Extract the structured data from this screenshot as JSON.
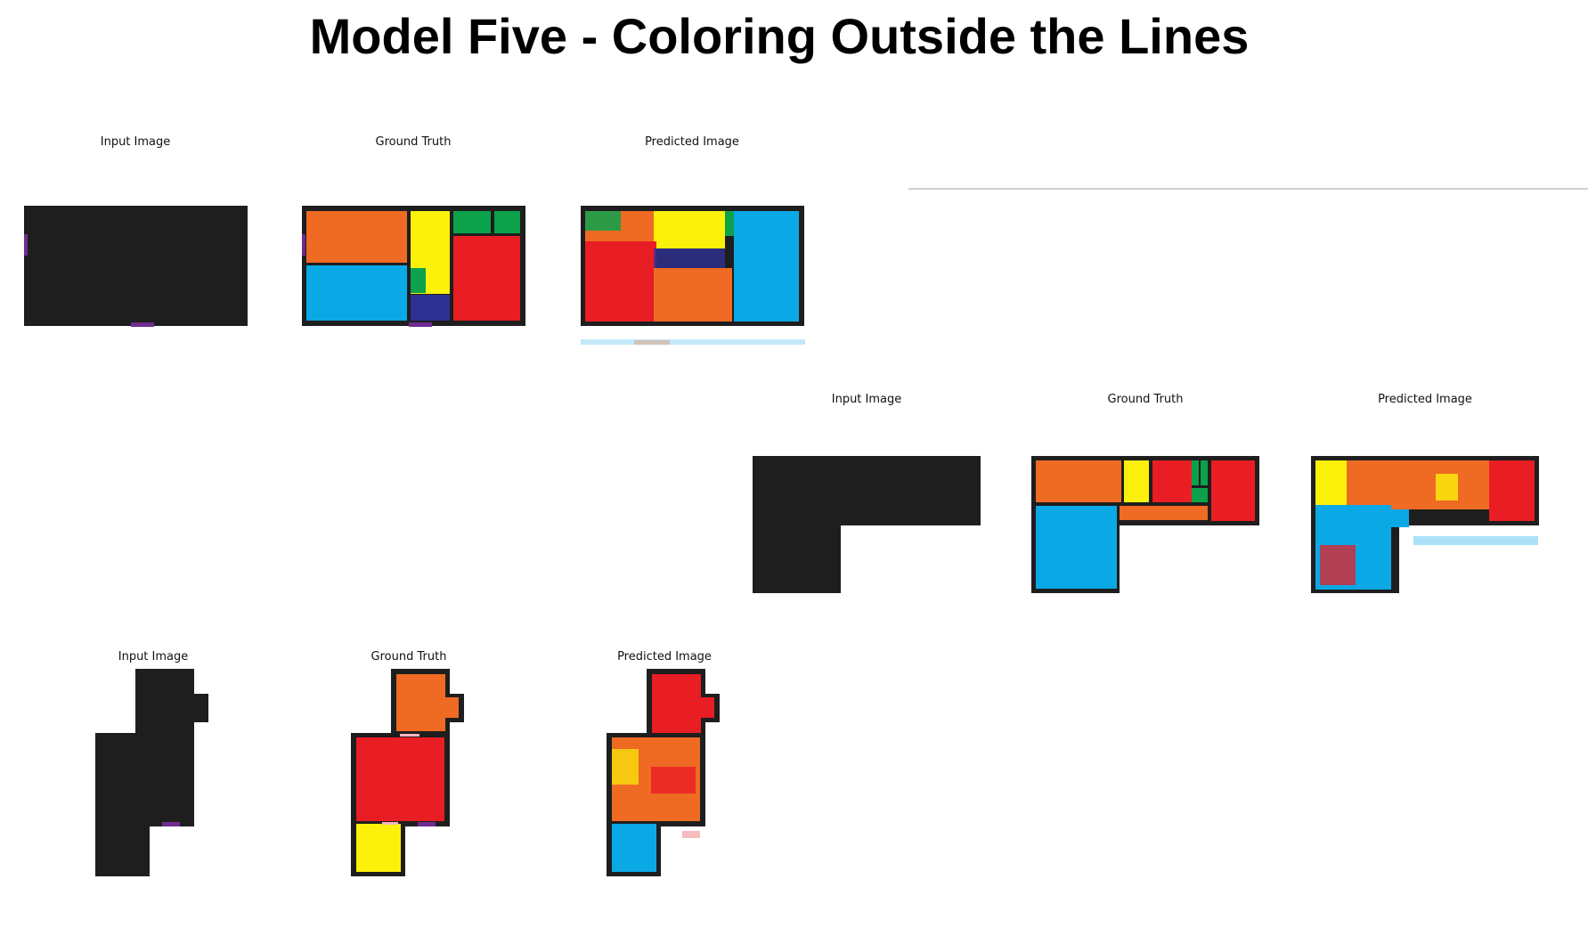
{
  "title": "Model Five - Coloring Outside the Lines",
  "rows": [
    {
      "labels": {
        "input": "Input Image",
        "truth": "Ground Truth",
        "predicted": "Predicted Image"
      }
    },
    {
      "labels": {
        "input": "Input Image",
        "truth": "Ground Truth",
        "predicted": "Predicted Image"
      }
    },
    {
      "labels": {
        "input": "Input Image",
        "truth": "Ground Truth",
        "predicted": "Predicted Image"
      }
    }
  ],
  "colors": {
    "wall": "#1e1e1e",
    "orange": "#ef6a23",
    "blue": "#0ba8e6",
    "yellow": "#fbf10a",
    "red": "#e91d24",
    "green": "#0ba24b",
    "navy": "#2e3192",
    "purple": "#6e2b90"
  }
}
